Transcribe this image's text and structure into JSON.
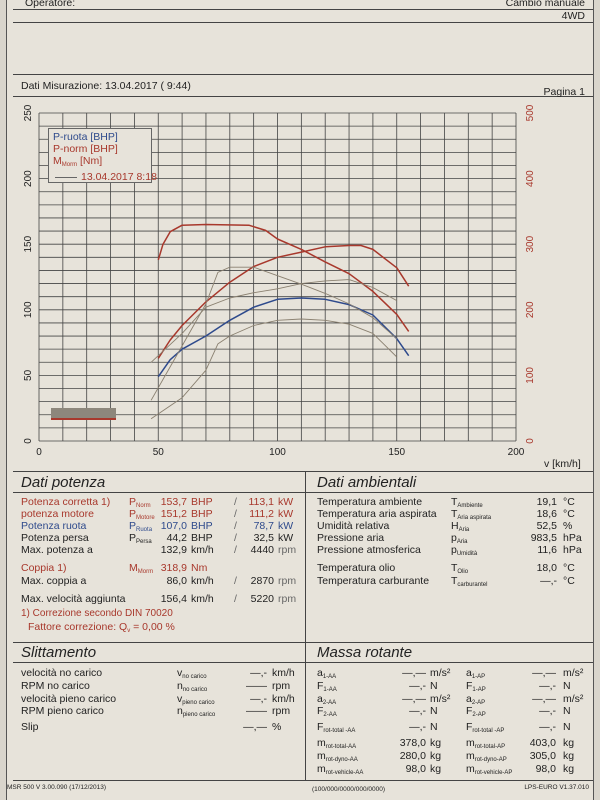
{
  "header": {
    "operator_label": "Operatore:",
    "gearbox": "Cambio manuale",
    "drive": "4WD"
  },
  "measure": {
    "label": "Dati Misurazione: 13.04.2017 ( 9:44)",
    "page": "Pagina 1"
  },
  "colors": {
    "red": "#a8382c",
    "blue": "#2e4a8c",
    "gray": "#8a8070"
  },
  "chart_data": {
    "type": "line",
    "xlabel": "v [km/h]",
    "xlim": [
      0,
      200
    ],
    "xticks": [
      0,
      50,
      100,
      150,
      200
    ],
    "ylim_left": [
      0,
      250
    ],
    "yticks_left": [
      0,
      50,
      100,
      150,
      200,
      250
    ],
    "ylim_right": [
      0,
      500
    ],
    "yticks_right": [
      0,
      100,
      200,
      300,
      400,
      500
    ],
    "grid": true,
    "legend_placement": "top-left",
    "legend": {
      "items": [
        "P-ruota [BHP]",
        "P-norm [BHP]"
      ],
      "torque_sym": "M",
      "torque_sub": "Morm",
      "torque_unit": " [Nm]",
      "comparison": "13.04.2017 8:18"
    },
    "logo_text": "Lombardini Borgomanero",
    "series": [
      {
        "name": "P-ruota [BHP]",
        "axis": "left",
        "color": "#2e4a8c",
        "x": [
          50,
          55,
          60,
          70,
          80,
          90,
          100,
          110,
          120,
          130,
          140,
          150,
          155
        ],
        "y": [
          49,
          62,
          70,
          80,
          92,
          102,
          108,
          109,
          108,
          104,
          96,
          78,
          65
        ]
      },
      {
        "name": "P-norm [BHP]",
        "axis": "left",
        "color": "#a8382c",
        "x": [
          50,
          55,
          60,
          70,
          80,
          90,
          100,
          110,
          120,
          130,
          135,
          140,
          150,
          155
        ],
        "y": [
          63,
          77,
          88,
          106,
          121,
          133,
          140,
          144,
          148,
          149,
          149,
          146,
          132,
          118
        ]
      },
      {
        "name": "M Morm [Nm]",
        "axis": "right",
        "color": "#a8382c",
        "x": [
          50,
          52,
          55,
          60,
          70,
          88,
          95,
          100,
          110,
          120,
          130,
          140,
          150,
          155
        ],
        "y": [
          276,
          300,
          319,
          329,
          330,
          329,
          321,
          308,
          292,
          273,
          255,
          228,
          193,
          167
        ]
      },
      {
        "name": "13.04.2017 8:18",
        "axis": "right",
        "color": "#8a8070",
        "x": [
          47,
          60,
          70,
          75,
          80,
          90,
          100,
          110,
          120,
          130,
          140,
          150
        ],
        "y": [
          62,
          145,
          209,
          257,
          265,
          265,
          252,
          239,
          225,
          209,
          188,
          156
        ]
      },
      {
        "name": "13.04.2017 8:18",
        "axis": "left",
        "color": "#8a8070",
        "x": [
          47,
          60,
          70,
          80,
          90,
          100,
          110,
          120,
          130,
          140,
          150
        ],
        "y": [
          60,
          82,
          102,
          109,
          113,
          116,
          120,
          122,
          123,
          117,
          107
        ]
      },
      {
        "name": "13.04.2017 8:18",
        "axis": "left",
        "color": "#8a8070",
        "x": [
          47,
          60,
          70,
          75,
          80,
          90,
          100,
          110,
          120,
          130,
          140,
          150
        ],
        "y": [
          17,
          33,
          54,
          74,
          80,
          88,
          92,
          93,
          92,
          89,
          82,
          64
        ]
      }
    ]
  },
  "power": {
    "title": "Dati potenza",
    "rows": [
      {
        "label": "Potenza corretta 1)",
        "sym": "P",
        "sub": "Norm",
        "v1": "153,7",
        "u1": "BHP",
        "sep": "/",
        "v2": "113,1",
        "u2": "kW",
        "color": "red"
      },
      {
        "label": "potenza motore",
        "sym": "P",
        "sub": "Motore",
        "v1": "151,2",
        "u1": "BHP",
        "sep": "/",
        "v2": "111,2",
        "u2": "kW",
        "color": "red"
      },
      {
        "label": "Potenza ruota",
        "sym": "P",
        "sub": "Ruota",
        "v1": "107,0",
        "u1": "BHP",
        "sep": "/",
        "v2": "78,7",
        "u2": "kW",
        "color": "blue"
      },
      {
        "label": "Potenza persa",
        "sym": "P",
        "sub": "Persa",
        "v1": "44,2",
        "u1": "BHP",
        "sep": "/",
        "v2": "32,5",
        "u2": "kW",
        "color": ""
      },
      {
        "label": "Max. potenza a",
        "sym": "",
        "sub": "",
        "v1": "132,9",
        "u1": "km/h",
        "sep": "/",
        "v2": "4440",
        "u2": "rpm",
        "color": ""
      },
      {
        "label": "Coppia 1)",
        "sym": "M",
        "sub": "Morm",
        "v1": "318,9",
        "u1": "Nm",
        "sep": "",
        "v2": "",
        "u2": "",
        "color": "red"
      },
      {
        "label": "Max. coppia a",
        "sym": "",
        "sub": "",
        "v1": "86,0",
        "u1": "km/h",
        "sep": "/",
        "v2": "2870",
        "u2": "rpm",
        "color": ""
      },
      {
        "label": "Max. velocità aggiunta",
        "sym": "",
        "sub": "",
        "v1": "156,4",
        "u1": "km/h",
        "sep": "/",
        "v2": "5220",
        "u2": "rpm",
        "color": ""
      }
    ],
    "note1": "1) Correzione secondo DIN 70020",
    "note2": "Fattore correzione: Q",
    "note2_sub": "v",
    "note2_val": " =   0,00 %"
  },
  "ambient": {
    "title": "Dati ambientali",
    "rows": [
      {
        "label": "Temperatura ambiente",
        "sym": "T",
        "sub": "Ambiente",
        "v": "19,1",
        "u": "°C"
      },
      {
        "label": "Temperatura aria aspirata",
        "sym": "T",
        "sub": "Aria aspirata",
        "v": "18,6",
        "u": "°C"
      },
      {
        "label": "Umidità relativa",
        "sym": "H",
        "sub": "Aria",
        "v": "52,5",
        "u": "%"
      },
      {
        "label": "Pressione aria",
        "sym": "p",
        "sub": "Aria",
        "v": "983,5",
        "u": "hPa"
      },
      {
        "label": "Pressione atmosferica",
        "sym": "p",
        "sub": "Umidità",
        "v": "11,6",
        "u": "hPa"
      },
      {
        "label": "Temperatura olio",
        "sym": "T",
        "sub": "Olio",
        "v": "18,0",
        "u": "°C"
      },
      {
        "label": "Temperatura carburante",
        "sym": "T",
        "sub": "carburantel",
        "v": "—,-",
        "u": "°C"
      }
    ]
  },
  "slip": {
    "title": "Slittamento",
    "rows": [
      {
        "label": "velocità no carico",
        "sym": "v",
        "sub": "no carico",
        "v": "—,-",
        "u": "km/h"
      },
      {
        "label": "RPM no carico",
        "sym": "n",
        "sub": "no carico",
        "v": "——",
        "u": "rpm"
      },
      {
        "label": "velocità pieno carico",
        "sym": "v",
        "sub": "pieno carico",
        "v": "—,-",
        "u": "km/h"
      },
      {
        "label": "RPM pieno carico",
        "sym": "n",
        "sub": "pieno carico",
        "v": "——",
        "u": "rpm"
      },
      {
        "label": "Slip",
        "sym": "",
        "sub": "",
        "v": "—,—",
        "u": "%"
      }
    ]
  },
  "mass": {
    "title": "Massa rotante",
    "rows": [
      {
        "s1": "a",
        "b1": "1-AA",
        "v1": "—,—",
        "u1": "m/s²",
        "s2": "a",
        "b2": "1-AP",
        "v2": "—,—",
        "u2": "m/s²"
      },
      {
        "s1": "F",
        "b1": "1-AA",
        "v1": "—,-",
        "u1": "N",
        "s2": "F",
        "b2": "1-AP",
        "v2": "—,-",
        "u2": "N"
      },
      {
        "s1": "a",
        "b1": "2-AA",
        "v1": "—,—",
        "u1": "m/s²",
        "s2": "a",
        "b2": "2-AP",
        "v2": "—,—",
        "u2": "m/s²"
      },
      {
        "s1": "F",
        "b1": "2-AA",
        "v1": "—,-",
        "u1": "N",
        "s2": "F",
        "b2": "2-AP",
        "v2": "—,-",
        "u2": "N"
      },
      {
        "s1": "F",
        "b1": "rot-total -AA",
        "v1": "—,-",
        "u1": "N",
        "s2": "F",
        "b2": "rot-total -AP",
        "v2": "—,-",
        "u2": "N"
      },
      {
        "s1": "m",
        "b1": "rot-total-AA",
        "v1": "378,0",
        "u1": "kg",
        "s2": "m",
        "b2": "rot-total-AP",
        "v2": "403,0",
        "u2": "kg"
      },
      {
        "s1": "m",
        "b1": "rot-dyno-AA",
        "v1": "280,0",
        "u1": "kg",
        "s2": "m",
        "b2": "rot-dyno-AP",
        "v2": "305,0",
        "u2": "kg"
      },
      {
        "s1": "m",
        "b1": "rot-vehicle-AA",
        "v1": "98,0",
        "u1": "kg",
        "s2": "m",
        "b2": "rot-vehicle-AP",
        "v2": "98,0",
        "u2": "kg"
      }
    ]
  },
  "footer": {
    "left": "MSR 500 V 3.00.090 (17/12/2013)",
    "center": "(100/000/0000/000/0000)",
    "right": "LPS-EURO V1.37.010"
  }
}
